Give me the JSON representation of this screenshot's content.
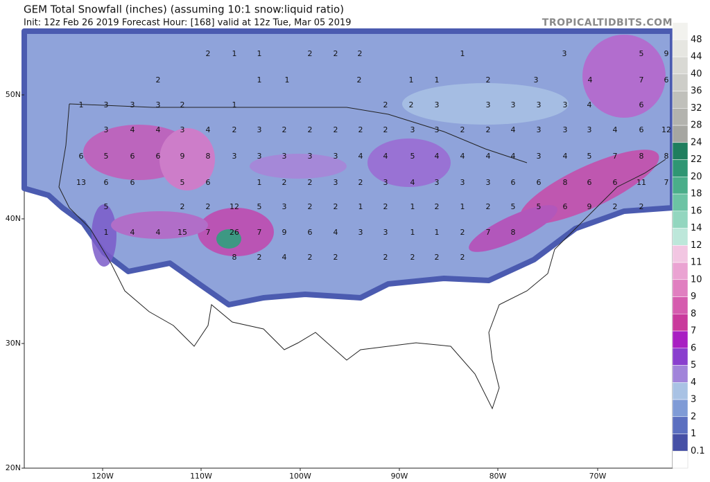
{
  "header": {
    "title": "GEM Total Snowfall (inches) (assuming 10:1 snow:liquid ratio)",
    "subtitle": "Init: 12z Feb 26 2019   Forecast Hour: [168]   valid at 12z Tue, Mar 05 2019",
    "watermark": "TROPICALTIDBITS.COM"
  },
  "map": {
    "lat_labels": [
      "50N",
      "40N",
      "30N",
      "20N"
    ],
    "lon_labels": [
      "120W",
      "110W",
      "100W",
      "90W",
      "80W",
      "70W"
    ],
    "point_labels": [
      2,
      1,
      1,
      2,
      2,
      2,
      1,
      3,
      5,
      9,
      2,
      1,
      1,
      2,
      1,
      1,
      2,
      3,
      4,
      7,
      6,
      1,
      3,
      3,
      3,
      2,
      1,
      2,
      2,
      3,
      3,
      3,
      3,
      3,
      4,
      6,
      3,
      4,
      4,
      3,
      4,
      2,
      3,
      2,
      2,
      2,
      2,
      2,
      3,
      3,
      2,
      2,
      4,
      3,
      3,
      3,
      4,
      6,
      12,
      6,
      5,
      6,
      6,
      9,
      8,
      3,
      3,
      3,
      3,
      3,
      4,
      4,
      5,
      4,
      4,
      4,
      4,
      3,
      4,
      5,
      7,
      8,
      8,
      13,
      6,
      6,
      5,
      6,
      1,
      2,
      2,
      3,
      2,
      3,
      4,
      3,
      3,
      3,
      6,
      6,
      8,
      6,
      6,
      11,
      7,
      5,
      2,
      2,
      12,
      5,
      3,
      2,
      2,
      1,
      2,
      1,
      2,
      1,
      2,
      5,
      5,
      6,
      9,
      2,
      2,
      1,
      4,
      4,
      15,
      7,
      26,
      7,
      9,
      6,
      4,
      3,
      3,
      1,
      1,
      2,
      7,
      8,
      8,
      2,
      4,
      2,
      2,
      2,
      2,
      2,
      2
    ]
  },
  "colorbar": {
    "labels": [
      48,
      44,
      40,
      36,
      32,
      28,
      24,
      22,
      20,
      18,
      16,
      14,
      12,
      11,
      10,
      9,
      8,
      7,
      6,
      5,
      4,
      3,
      2,
      1,
      0.1
    ],
    "colors": [
      "#f2f2ee",
      "#e6e6e1",
      "#d9d9d4",
      "#cdcdc8",
      "#c0c0bb",
      "#b3b3ae",
      "#a6a6a1",
      "#1f7e5e",
      "#2f9673",
      "#4aae8a",
      "#6cc3a4",
      "#93d6bf",
      "#bde7da",
      "#f2c6e2",
      "#eaa3d2",
      "#e07fc0",
      "#d55cae",
      "#c93a9c",
      "#a81fc2",
      "#8a3fce",
      "#a184da",
      "#a9c2e4",
      "#7f9bd6",
      "#5b6fc0",
      "#4650a6"
    ]
  }
}
